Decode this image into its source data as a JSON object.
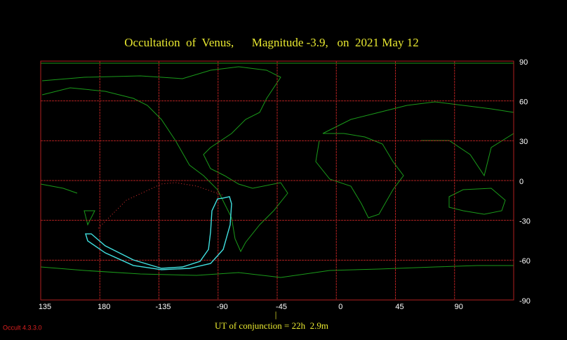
{
  "chart_data": {
    "type": "map",
    "title": "Occultation  of  Venus,      Magnitude -3.9,   on  2021 May 12",
    "footer": "UT of conjunction = 22h  2.9m",
    "version": "Occult 4.3.3.0",
    "xlim": [
      135,
      495
    ],
    "ylim": [
      -90,
      90
    ],
    "xticks": [
      135,
      180,
      {
        "value": 225,
        "label": "-135"
      },
      {
        "value": 270,
        "label": "-90"
      },
      {
        "value": 315,
        "label": "-45"
      },
      {
        "value": 360,
        "label": "0"
      },
      {
        "value": 405,
        "label": "45"
      },
      {
        "value": 450,
        "label": "90"
      }
    ],
    "yticks": [
      90,
      60,
      30,
      0,
      -30,
      -60,
      -90
    ],
    "grid": true,
    "series": [
      {
        "color": "#40e0e0",
        "style": "solid",
        "x": [
          273.9,
          278.7,
          280.3,
          279.2,
          273.9,
          264.3,
          248.2,
          226.9,
          205.5,
          184.1,
          170.8,
          169.2,
          173.5,
          184.1,
          205.5,
          226.9,
          242.9,
          256.3,
          262.7,
          264.3,
          265.3,
          269.6,
          273.9
        ],
        "values": [
          -13.2,
          -12.2,
          -17.5,
          -33.3,
          -51.9,
          -62.5,
          -66.2,
          -67.2,
          -64.0,
          -54.5,
          -45.5,
          -40.2,
          -40.2,
          -49.2,
          -59.8,
          -66.2,
          -65.1,
          -60.9,
          -51.9,
          -38.6,
          -22.8,
          -13.8,
          -13.2
        ]
      },
      {
        "color": "#e03030",
        "style": "dotted",
        "x": [
          178.8,
          200.2,
          226.9,
          237.6,
          253.6,
          273.9
        ],
        "values": [
          -36.0,
          -14.8,
          -2.6,
          -1.6,
          -4.2,
          -11.1
        ]
      }
    ]
  }
}
